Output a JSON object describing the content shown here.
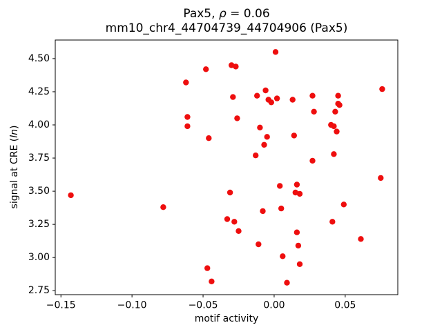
{
  "figure": {
    "title_line1": {
      "prefix": "Pax5, ",
      "rho": "ρ",
      "suffix": " = 0.06"
    },
    "title_line2": "mm10_chr4_44704739_44704906 (Pax5)",
    "xlabel": "motif activity",
    "ylabel": {
      "prefix": "signal at CRE (",
      "italic": "ln",
      "suffix": ")"
    }
  },
  "chart_data": {
    "type": "scatter",
    "title": "Pax5, ρ = 0.06\nmm10_chr4_44704739_44704906 (Pax5)",
    "xlabel": "motif activity",
    "ylabel": "signal at CRE (ln)",
    "legend": "none",
    "grid": false,
    "marker_color": "#ee0e0e",
    "marker_radius_px": 4.2,
    "xlim": [
      -0.154,
      0.087
    ],
    "ylim": [
      2.72,
      4.64
    ],
    "xticks": [
      -0.15,
      -0.1,
      -0.05,
      0.0,
      0.05
    ],
    "xtick_labels": [
      "−0.15",
      "−0.10",
      "−0.05",
      "0.00",
      "0.05"
    ],
    "yticks": [
      2.75,
      3.0,
      3.25,
      3.5,
      3.75,
      4.0,
      4.25,
      4.5
    ],
    "ytick_labels": [
      "2.75",
      "3.00",
      "3.25",
      "3.50",
      "3.75",
      "4.00",
      "4.25",
      "4.50"
    ],
    "points": [
      [
        -0.143,
        3.47
      ],
      [
        -0.078,
        3.38
      ],
      [
        -0.062,
        4.32
      ],
      [
        -0.061,
        4.06
      ],
      [
        -0.061,
        3.99
      ],
      [
        -0.048,
        4.42
      ],
      [
        -0.046,
        3.9
      ],
      [
        -0.047,
        2.92
      ],
      [
        -0.044,
        2.82
      ],
      [
        -0.03,
        4.45
      ],
      [
        -0.027,
        4.44
      ],
      [
        -0.029,
        4.21
      ],
      [
        -0.026,
        4.05
      ],
      [
        -0.031,
        3.49
      ],
      [
        -0.033,
        3.29
      ],
      [
        -0.028,
        3.27
      ],
      [
        -0.025,
        3.2
      ],
      [
        -0.012,
        4.22
      ],
      [
        -0.01,
        3.98
      ],
      [
        -0.013,
        3.77
      ],
      [
        -0.011,
        3.1
      ],
      [
        -0.006,
        4.26
      ],
      [
        -0.004,
        4.19
      ],
      [
        -0.002,
        4.17
      ],
      [
        -0.005,
        3.91
      ],
      [
        -0.007,
        3.85
      ],
      [
        -0.008,
        3.35
      ],
      [
        0.001,
        4.55
      ],
      [
        0.002,
        4.2
      ],
      [
        0.004,
        3.54
      ],
      [
        0.005,
        3.37
      ],
      [
        0.006,
        3.01
      ],
      [
        0.009,
        2.81
      ],
      [
        0.013,
        4.19
      ],
      [
        0.014,
        3.92
      ],
      [
        0.016,
        3.55
      ],
      [
        0.015,
        3.49
      ],
      [
        0.018,
        3.48
      ],
      [
        0.016,
        3.19
      ],
      [
        0.017,
        3.09
      ],
      [
        0.018,
        2.95
      ],
      [
        0.027,
        4.22
      ],
      [
        0.028,
        4.1
      ],
      [
        0.027,
        3.73
      ],
      [
        0.04,
        4.0
      ],
      [
        0.042,
        3.99
      ],
      [
        0.043,
        4.1
      ],
      [
        0.045,
        4.22
      ],
      [
        0.045,
        4.16
      ],
      [
        0.046,
        4.15
      ],
      [
        0.044,
        3.95
      ],
      [
        0.042,
        3.78
      ],
      [
        0.041,
        3.27
      ],
      [
        0.049,
        3.4
      ],
      [
        0.061,
        3.14
      ],
      [
        0.076,
        4.27
      ],
      [
        0.075,
        3.6
      ]
    ]
  }
}
